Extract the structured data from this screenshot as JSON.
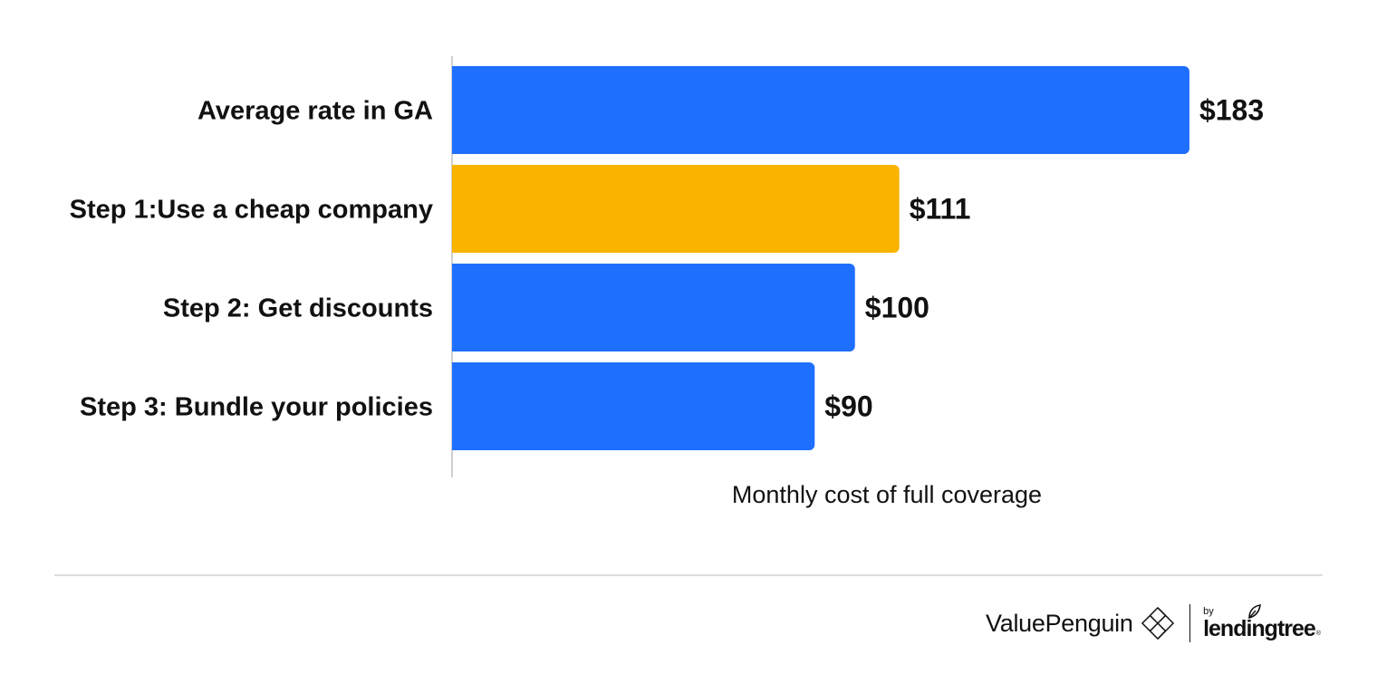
{
  "chart_data": {
    "type": "bar",
    "orientation": "horizontal",
    "categories": [
      "Average rate in GA",
      "Step 1:Use a cheap company",
      "Step 2: Get discounts",
      "Step 3: Bundle your policies"
    ],
    "values": [
      183,
      111,
      100,
      90
    ],
    "value_labels": [
      "$183",
      "$111",
      "$100",
      "$90"
    ],
    "bar_colors": [
      "#1f6fff",
      "#f9b400",
      "#1f6fff",
      "#1f6fff"
    ],
    "xlabel": "Monthly cost of full coverage",
    "ylabel": "",
    "xlim": [
      0,
      230
    ],
    "grid": false,
    "legend": "none"
  },
  "branding": {
    "name": "ValuePenguin",
    "by": "by",
    "partner": "lendingtree",
    "trademark": "®"
  },
  "colors": {
    "accent_blue": "#1f6fff",
    "accent_yellow": "#f9b400",
    "text": "#111111",
    "divider": "#dcdcdc"
  }
}
